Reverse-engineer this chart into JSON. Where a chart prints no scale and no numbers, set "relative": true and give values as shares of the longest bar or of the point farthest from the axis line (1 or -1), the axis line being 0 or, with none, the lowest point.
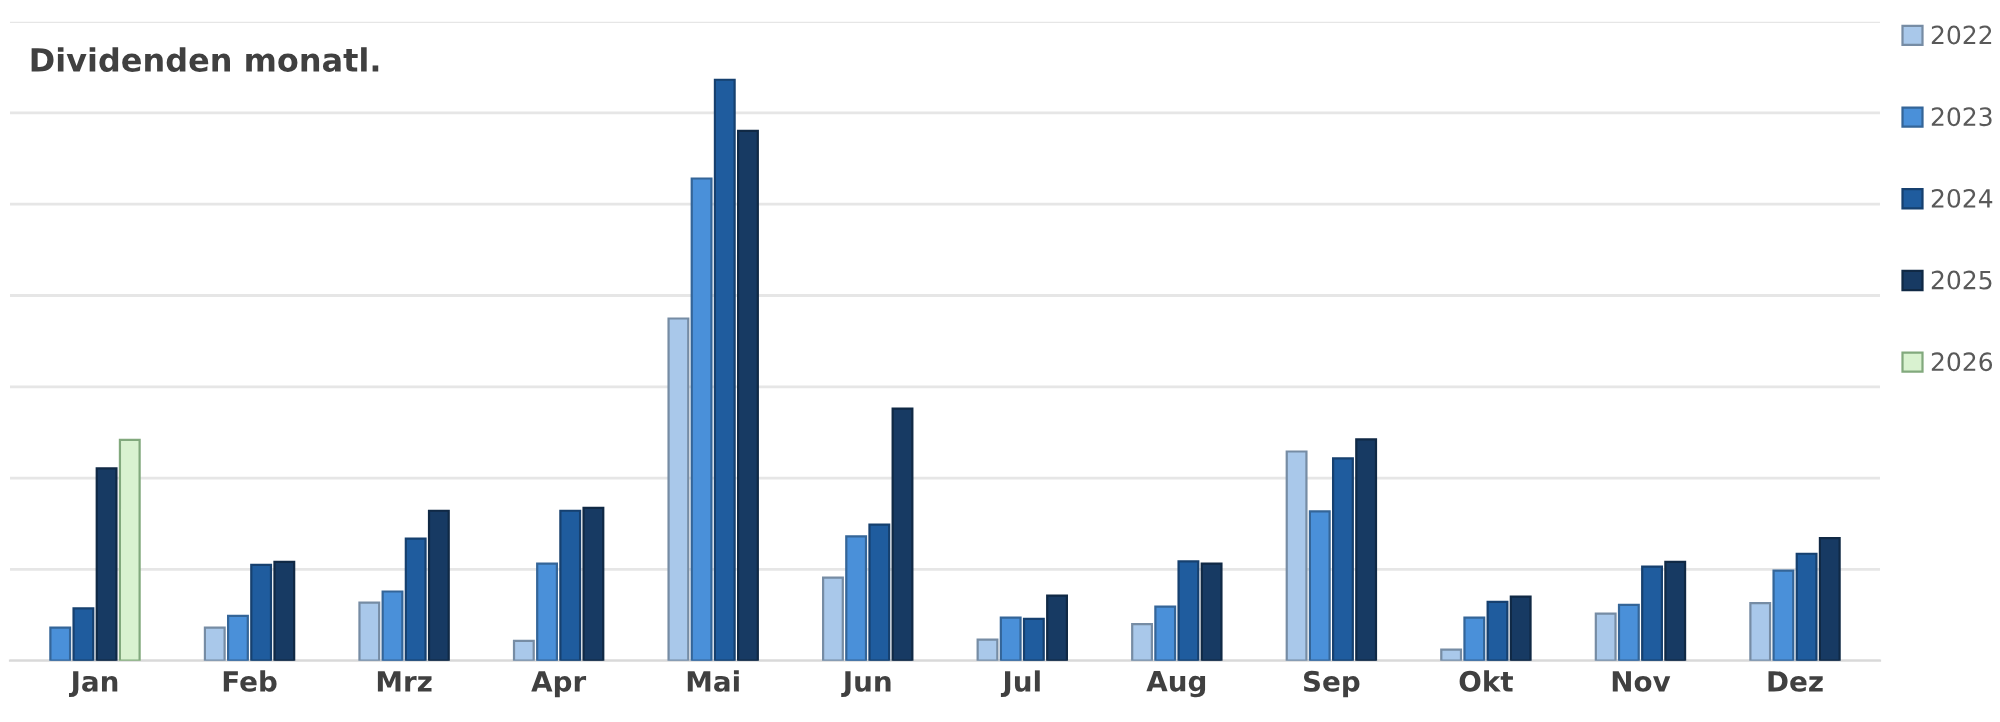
{
  "chart_data": {
    "type": "bar",
    "title": "Dividenden monatl.",
    "relative": true,
    "grid": "y",
    "legend": "right",
    "categories": [
      "Jan",
      "Feb",
      "Mrz",
      "Apr",
      "Mai",
      "Jun",
      "Jul",
      "Aug",
      "Sep",
      "Okt",
      "Nov",
      "Dez"
    ],
    "series": [
      {
        "name": "2022",
        "color": "#a9c8ea",
        "values": [
          null,
          0.057,
          0.1,
          0.034,
          0.589,
          0.143,
          0.036,
          0.063,
          0.36,
          0.019,
          0.081,
          0.099
        ]
      },
      {
        "name": "2023",
        "color": "#4a90d9",
        "values": [
          0.057,
          0.077,
          0.119,
          0.167,
          0.83,
          0.214,
          0.074,
          0.093,
          0.257,
          0.074,
          0.096,
          0.155
        ]
      },
      {
        "name": "2024",
        "color": "#1f5c9e",
        "values": [
          0.09,
          0.165,
          0.21,
          0.258,
          1,
          0.234,
          0.072,
          0.171,
          0.348,
          0.101,
          0.162,
          0.184
        ]
      },
      {
        "name": "2025",
        "color": "#173a63",
        "values": [
          0.331,
          0.17,
          0.258,
          0.263,
          0.912,
          0.434,
          0.112,
          0.167,
          0.381,
          0.11,
          0.17,
          0.211
        ]
      },
      {
        "name": "2026",
        "color": "#d9f2d0",
        "values": [
          0.38,
          null,
          null,
          null,
          null,
          null,
          null,
          null,
          null,
          null,
          null,
          null
        ]
      }
    ]
  }
}
